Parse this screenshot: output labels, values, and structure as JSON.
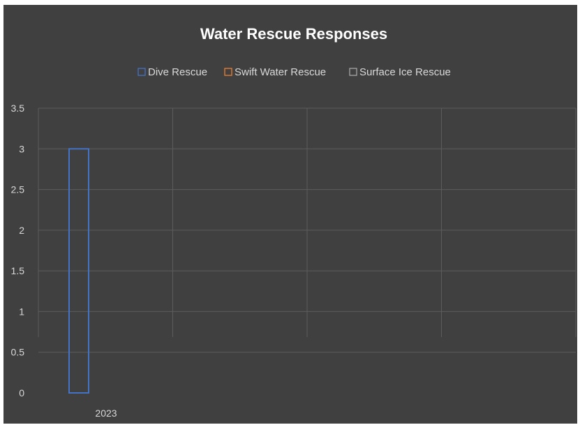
{
  "chart_data": {
    "type": "bar",
    "title": "Water Rescue Responses",
    "categories": [
      "2023",
      "",
      "",
      ""
    ],
    "series": [
      {
        "name": "Dive Rescue",
        "color": "#4472c4",
        "values": [
          3,
          null,
          null,
          null
        ]
      },
      {
        "name": "Swift Water Rescue",
        "color": "#ed7d31",
        "values": [
          0,
          null,
          null,
          null
        ]
      },
      {
        "name": "Surface Ice Rescue",
        "color": "#a5a5a5",
        "values": [
          0,
          null,
          null,
          null
        ]
      }
    ],
    "bar_style": "outline",
    "ylim": [
      0,
      3.5
    ],
    "yticks": [
      "0",
      "0.5",
      "1",
      "1.5",
      "2",
      "2.5",
      "3",
      "3.5"
    ],
    "xlabel": "",
    "ylabel": "",
    "grid": true,
    "legend_position": "top",
    "background": "#404040"
  }
}
